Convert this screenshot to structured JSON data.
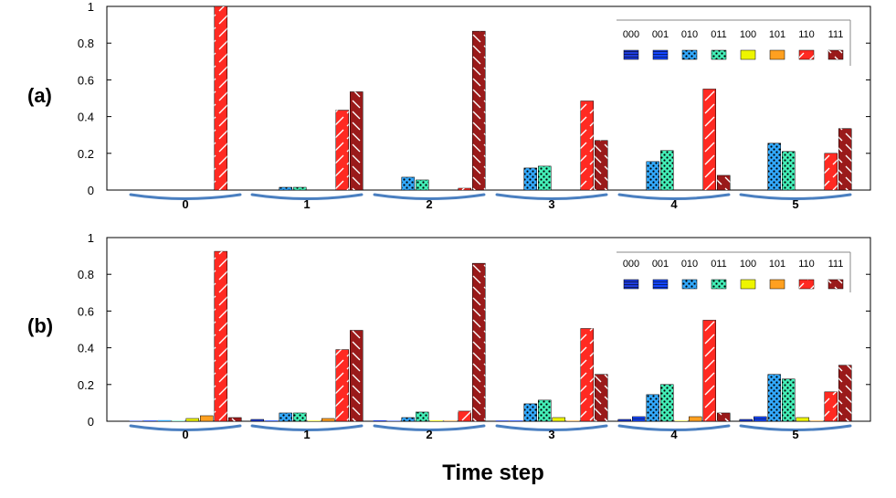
{
  "chart_data": [
    {
      "type": "bar",
      "panel_label": "(a)",
      "categories": [
        "0",
        "1",
        "2",
        "3",
        "4",
        "5"
      ],
      "xlabel": "Time step",
      "ylabel": "",
      "ylim": [
        0,
        1
      ],
      "yticks": [
        "0",
        "0.2",
        "0.4",
        "0.6",
        "0.8",
        "1"
      ],
      "legend_placement": "top-right",
      "series": [
        {
          "name": "000",
          "color": "#1e3cdc",
          "pattern": "hlines",
          "values": [
            0,
            0,
            0,
            0,
            0,
            0
          ]
        },
        {
          "name": "001",
          "color": "#1446ff",
          "pattern": "hlines",
          "values": [
            0,
            0,
            0,
            0,
            0,
            0
          ]
        },
        {
          "name": "010",
          "color": "#33aaff",
          "pattern": "dots",
          "values": [
            0,
            0.015,
            0.07,
            0.12,
            0.155,
            0.255
          ]
        },
        {
          "name": "011",
          "color": "#44f0b8",
          "pattern": "dots",
          "values": [
            0,
            0.015,
            0.055,
            0.13,
            0.215,
            0.21
          ]
        },
        {
          "name": "100",
          "color": "#eef500",
          "pattern": "solid",
          "values": [
            0,
            0,
            0,
            0,
            0,
            0
          ]
        },
        {
          "name": "101",
          "color": "#ffa020",
          "pattern": "solid",
          "values": [
            0,
            0,
            0,
            0,
            0,
            0
          ]
        },
        {
          "name": "110",
          "color": "#ff2a22",
          "pattern": "diag",
          "values": [
            1.0,
            0.435,
            0.01,
            0.485,
            0.55,
            0.2
          ]
        },
        {
          "name": "111",
          "color": "#9a1a1a",
          "pattern": "backdiag",
          "values": [
            0,
            0.535,
            0.865,
            0.27,
            0.08,
            0.335
          ]
        }
      ]
    },
    {
      "type": "bar",
      "panel_label": "(b)",
      "categories": [
        "0",
        "1",
        "2",
        "3",
        "4",
        "5"
      ],
      "xlabel": "Time step",
      "ylabel": "",
      "ylim": [
        0,
        1
      ],
      "yticks": [
        "0",
        "0.2",
        "0.4",
        "0.6",
        "0.8",
        "1"
      ],
      "legend_placement": "top-right",
      "series": [
        {
          "name": "000",
          "color": "#1e3cdc",
          "pattern": "hlines",
          "values": [
            0.002,
            0.01,
            0.005,
            0.004,
            0.01,
            0.01
          ]
        },
        {
          "name": "001",
          "color": "#1446ff",
          "pattern": "hlines",
          "values": [
            0.004,
            0.004,
            0.002,
            0.004,
            0.025,
            0.025
          ]
        },
        {
          "name": "010",
          "color": "#33aaff",
          "pattern": "dots",
          "values": [
            0.006,
            0.045,
            0.02,
            0.095,
            0.145,
            0.255
          ]
        },
        {
          "name": "011",
          "color": "#44f0b8",
          "pattern": "dots",
          "values": [
            0.002,
            0.045,
            0.05,
            0.115,
            0.2,
            0.23
          ]
        },
        {
          "name": "100",
          "color": "#eef500",
          "pattern": "solid",
          "values": [
            0.015,
            0.003,
            0.004,
            0.02,
            0.002,
            0.02
          ]
        },
        {
          "name": "101",
          "color": "#ffa020",
          "pattern": "solid",
          "values": [
            0.03,
            0.015,
            0.003,
            0.003,
            0.025,
            0.003
          ]
        },
        {
          "name": "110",
          "color": "#ff2a22",
          "pattern": "diag",
          "values": [
            0.925,
            0.39,
            0.055,
            0.505,
            0.55,
            0.16
          ]
        },
        {
          "name": "111",
          "color": "#9a1a1a",
          "pattern": "backdiag",
          "values": [
            0.02,
            0.495,
            0.86,
            0.255,
            0.045,
            0.305
          ]
        }
      ]
    }
  ]
}
